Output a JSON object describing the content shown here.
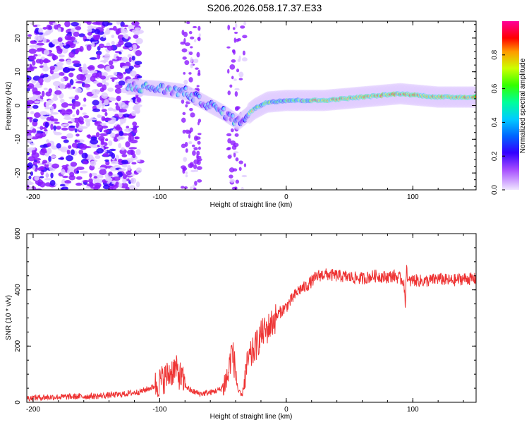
{
  "title": "S206.2026.058.17.37.E33",
  "chart_data": [
    {
      "type": "heatmap",
      "name": "spectrogram",
      "xlabel": "Height of straight line (km)",
      "ylabel": "Frequency (Hz)",
      "xlim": [
        -205,
        150
      ],
      "ylim": [
        -25,
        25
      ],
      "xticks": [
        -200,
        -100,
        0,
        100
      ],
      "yticks": [
        -20,
        -10,
        0,
        10,
        20
      ],
      "colorbar": {
        "label": "Normalized spectral amplitude",
        "range": [
          0,
          1
        ],
        "ticks": [
          0.0,
          0.2,
          0.4,
          0.6,
          0.8
        ],
        "colors": [
          "#e0ccff",
          "#8c1aff",
          "#3300ff",
          "#0066ff",
          "#00ccff",
          "#00ff99",
          "#33ff00",
          "#ccff00",
          "#ff9900",
          "#ff0000",
          "#ff00aa"
        ]
      },
      "ridge": [
        {
          "x": -120,
          "f": 5.5
        },
        {
          "x": -100,
          "f": 5
        },
        {
          "x": -80,
          "f": 4
        },
        {
          "x": -65,
          "f": 1
        },
        {
          "x": -50,
          "f": -2
        },
        {
          "x": -38,
          "f": -5
        },
        {
          "x": -25,
          "f": -1
        },
        {
          "x": -15,
          "f": 1
        },
        {
          "x": 0,
          "f": 1.5
        },
        {
          "x": 30,
          "f": 1.5
        },
        {
          "x": 60,
          "f": 2.5
        },
        {
          "x": 90,
          "f": 3.5
        },
        {
          "x": 120,
          "f": 2.5
        },
        {
          "x": 150,
          "f": 2.5
        }
      ]
    },
    {
      "type": "line",
      "name": "snr",
      "xlabel": "Height of straight line (km)",
      "ylabel": "SNR (10 * v/v)",
      "xlim": [
        -205,
        150
      ],
      "ylim": [
        0,
        600
      ],
      "xticks": [
        -200,
        -100,
        0,
        100
      ],
      "yticks": [
        0,
        200,
        400,
        600
      ],
      "color": "#ee3333",
      "series": [
        {
          "name": "SNR",
          "x": [
            -205,
            -190,
            -170,
            -150,
            -130,
            -115,
            -105,
            -95,
            -88,
            -84,
            -80,
            -75,
            -68,
            -60,
            -52,
            -46,
            -43,
            -40,
            -38,
            -35,
            -33,
            -30,
            -27,
            -24,
            -20,
            -15,
            -10,
            -5,
            0,
            5,
            10,
            15,
            20,
            25,
            30,
            40,
            50,
            60,
            70,
            80,
            85,
            90,
            93,
            94,
            95,
            96,
            100,
            110,
            120,
            130,
            140,
            150
          ],
          "y": [
            15,
            18,
            20,
            22,
            28,
            38,
            55,
            90,
            120,
            95,
            60,
            40,
            30,
            35,
            45,
            90,
            190,
            110,
            40,
            20,
            80,
            150,
            170,
            200,
            240,
            260,
            290,
            320,
            340,
            370,
            400,
            410,
            430,
            450,
            455,
            450,
            445,
            440,
            450,
            445,
            450,
            440,
            430,
            330,
            500,
            425,
            435,
            430,
            440,
            432,
            440,
            438
          ]
        }
      ]
    }
  ]
}
